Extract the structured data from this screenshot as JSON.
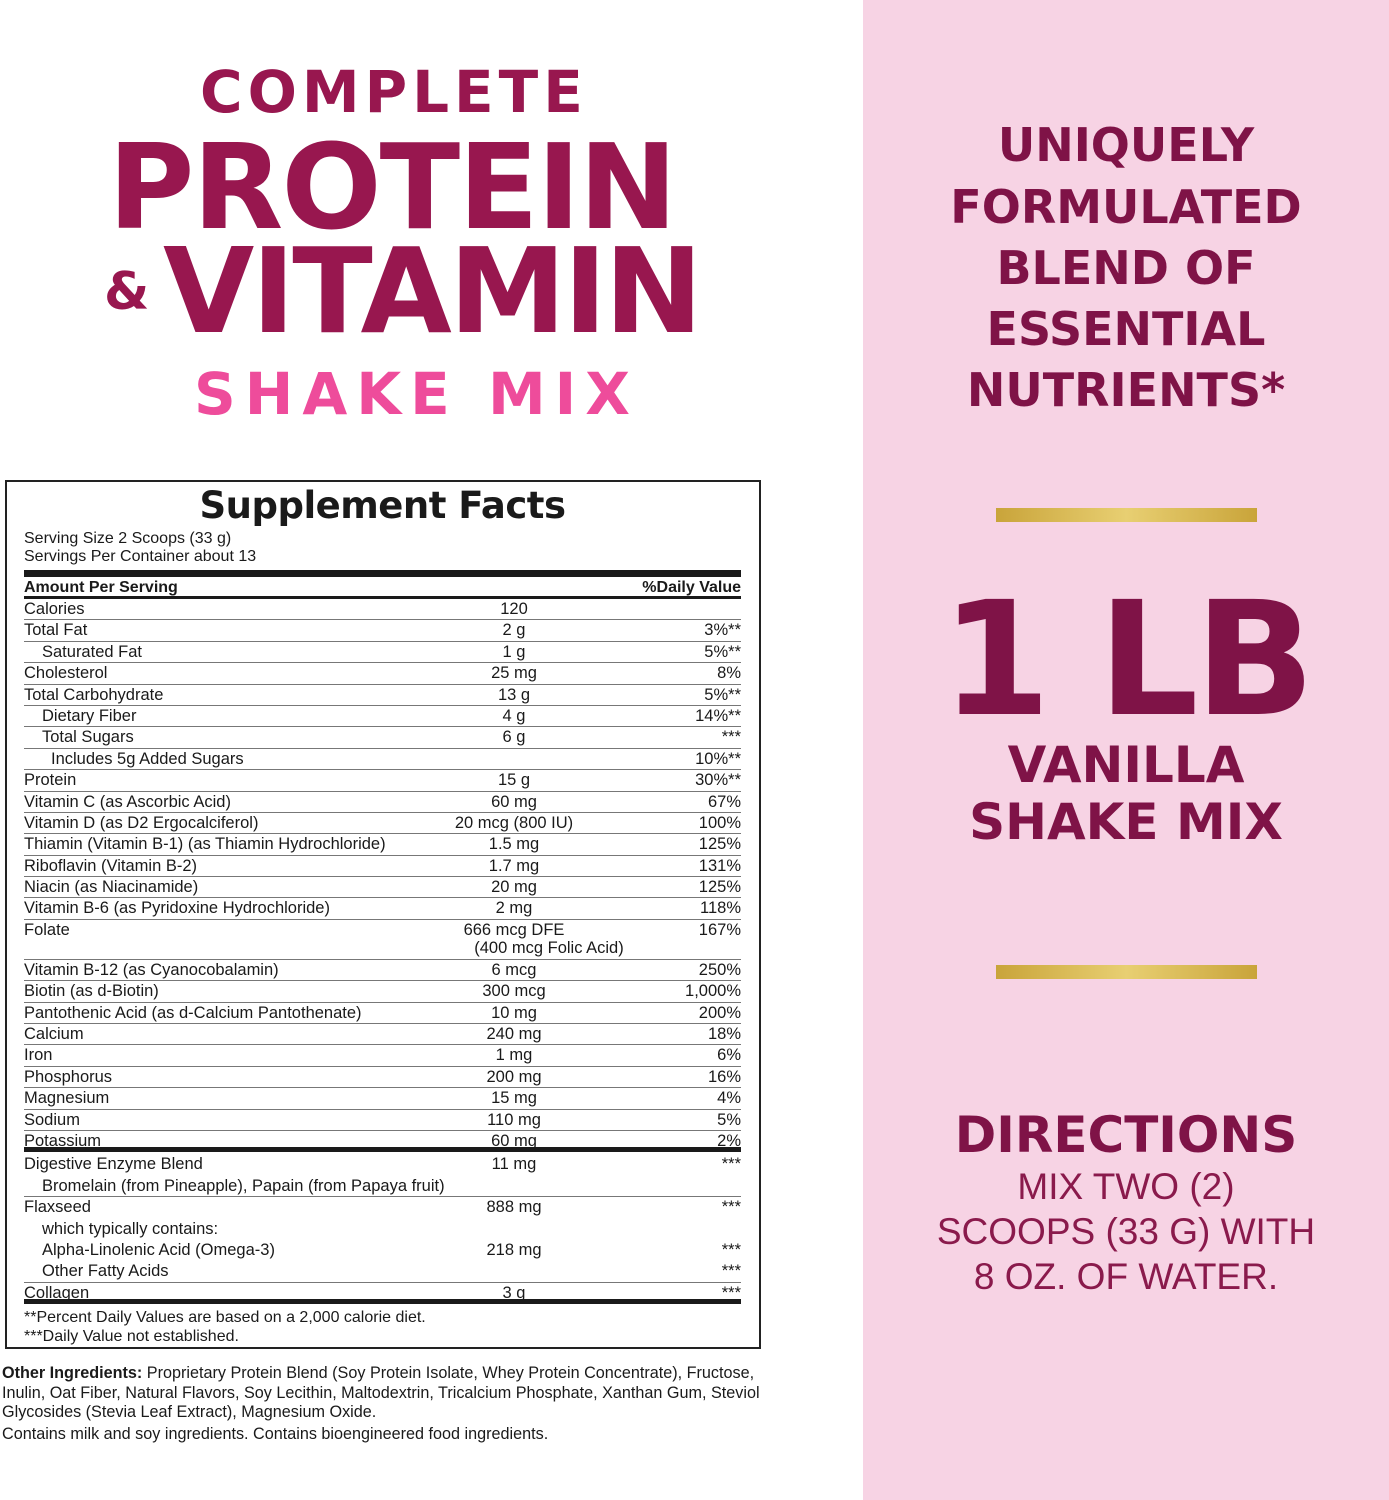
{
  "title": {
    "line1": "COMPLETE",
    "line2": "PROTEIN",
    "amp": "&",
    "line3": "VITAMIN",
    "line4": "SHAKE MIX"
  },
  "facts": {
    "title": "Supplement Facts",
    "serving_size": "Serving Size 2 Scoops (33 g)",
    "servings_per_container": "Servings Per Container about 13",
    "header_left": "Amount Per Serving",
    "header_right": "%Daily Value",
    "rows": [
      {
        "name": "Calories",
        "amount": "120",
        "dv": "",
        "indent": 0
      },
      {
        "name": "Total Fat",
        "amount": "2 g",
        "dv": "3%**",
        "indent": 0
      },
      {
        "name": "Saturated Fat",
        "amount": "1 g",
        "dv": "5%**",
        "indent": 1
      },
      {
        "name": "Cholesterol",
        "amount": "25 mg",
        "dv": "8%",
        "indent": 0
      },
      {
        "name": "Total Carbohydrate",
        "amount": "13 g",
        "dv": "5%**",
        "indent": 0
      },
      {
        "name": "Dietary Fiber",
        "amount": "4 g",
        "dv": "14%**",
        "indent": 1
      },
      {
        "name": "Total Sugars",
        "amount": "6 g",
        "dv": "***",
        "indent": 1
      },
      {
        "name": "Includes 5g Added Sugars",
        "amount": "",
        "dv": "10%**",
        "indent": 2
      },
      {
        "name": "Protein",
        "amount": "15 g",
        "dv": "30%**",
        "indent": 0
      },
      {
        "name": "Vitamin C (as Ascorbic Acid)",
        "amount": "60 mg",
        "dv": "67%",
        "indent": 0
      },
      {
        "name": "Vitamin D (as D2 Ergocalciferol)",
        "amount": "20 mcg (800 IU)",
        "dv": "100%",
        "indent": 0
      },
      {
        "name": "Thiamin (Vitamin B-1) (as Thiamin Hydrochloride)",
        "amount": "1.5 mg",
        "dv": "125%",
        "indent": 0
      },
      {
        "name": "Riboflavin (Vitamin B-2)",
        "amount": "1.7 mg",
        "dv": "131%",
        "indent": 0
      },
      {
        "name": "Niacin (as Niacinamide)",
        "amount": "20 mg",
        "dv": "125%",
        "indent": 0
      },
      {
        "name": "Vitamin B-6 (as Pyridoxine Hydrochloride)",
        "amount": "2 mg",
        "dv": "118%",
        "indent": 0
      },
      {
        "name": "Folate",
        "amount": "666 mcg DFE",
        "amount2": "(400 mcg Folic Acid)",
        "dv": "167%",
        "indent": 0
      },
      {
        "name": "Vitamin B-12 (as Cyanocobalamin)",
        "amount": "6 mcg",
        "dv": "250%",
        "indent": 0
      },
      {
        "name": "Biotin (as d-Biotin)",
        "amount": "300 mcg",
        "dv": "1,000%",
        "indent": 0
      },
      {
        "name": "Pantothenic Acid (as d-Calcium Pantothenate)",
        "amount": "10 mg",
        "dv": "200%",
        "indent": 0
      },
      {
        "name": "Calcium",
        "amount": "240 mg",
        "dv": "18%",
        "indent": 0
      },
      {
        "name": "Iron",
        "amount": "1 mg",
        "dv": "6%",
        "indent": 0
      },
      {
        "name": "Phosphorus",
        "amount": "200 mg",
        "dv": "16%",
        "indent": 0
      },
      {
        "name": "Magnesium",
        "amount": "15 mg",
        "dv": "4%",
        "indent": 0
      },
      {
        "name": "Sodium",
        "amount": "110 mg",
        "dv": "5%",
        "indent": 0
      },
      {
        "name": "Potassium",
        "amount": "60 mg",
        "dv": "2%",
        "indent": 0
      }
    ],
    "blend_rows": [
      {
        "name": "Digestive Enzyme Blend",
        "amount": "11 mg",
        "dv": "***",
        "indent": 0
      },
      {
        "name": "Bromelain (from Pineapple), Papain (from Papaya fruit)",
        "amount": "",
        "dv": "",
        "indent": 1
      },
      {
        "name": "Flaxseed",
        "amount": "888 mg",
        "dv": "***",
        "indent": 0
      },
      {
        "name": "which typically contains:",
        "amount": "",
        "dv": "",
        "indent": 1
      },
      {
        "name": "Alpha-Linolenic Acid (Omega-3)",
        "amount": "218 mg",
        "dv": "***",
        "indent": 1
      },
      {
        "name": "Other Fatty Acids",
        "amount": "",
        "dv": "***",
        "indent": 1
      },
      {
        "name": "Collagen",
        "amount": "3 g",
        "dv": "***",
        "indent": 0
      }
    ],
    "footnote1": "**Percent Daily Values are based on a 2,000 calorie diet.",
    "footnote2": "***Daily Value not established."
  },
  "other_ingredients": {
    "label": "Other Ingredients:",
    "text": " Proprietary Protein Blend (Soy Protein Isolate, Whey Protein Concentrate), Fructose, Inulin, Oat Fiber, Natural Flavors, Soy Lecithin, Maltodextrin, Tricalcium Phosphate, Xanthan Gum, Steviol Glycosides (Stevia Leaf Extract), Magnesium Oxide."
  },
  "contains": "Contains milk and soy ingredients. Contains bioengineered food ingredients.",
  "right": {
    "tagline": [
      "UNIQUELY",
      "FORMULATED",
      "BLEND OF",
      "ESSENTIAL",
      "NUTRIENTS*"
    ],
    "weight": "1 LB",
    "flavor": [
      "VANILLA",
      "SHAKE MIX"
    ],
    "directions_title": "DIRECTIONS",
    "directions": [
      "MIX TWO (2)",
      "SCOOPS (33 G) WITH",
      "8 OZ. OF WATER."
    ]
  },
  "colors": {
    "brand": "#98174f",
    "accent_pink": "#ee4c9b",
    "panel_bg": "#f7d3e4",
    "gold": "#d4b24a"
  }
}
